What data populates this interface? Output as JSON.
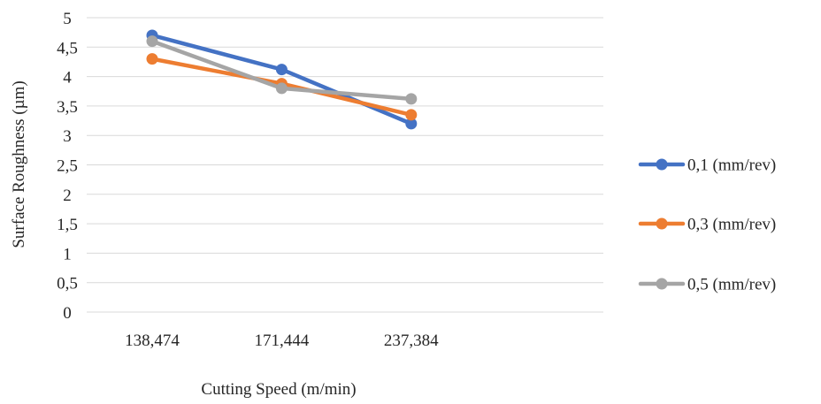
{
  "chart_data": {
    "type": "line",
    "categories": [
      "138,474",
      "171,444",
      "237,384"
    ],
    "series": [
      {
        "name": "0,1 (mm/rev)",
        "values": [
          4.7,
          4.12,
          3.2
        ],
        "color": "#4472C4"
      },
      {
        "name": "0,3 (mm/rev)",
        "values": [
          4.3,
          3.88,
          3.35
        ],
        "color": "#ED7D31"
      },
      {
        "name": "0,5 (mm/rev)",
        "values": [
          4.6,
          3.8,
          3.62
        ],
        "color": "#A5A5A5"
      }
    ],
    "xlabel": "Cutting Speed (m/min)",
    "ylabel": "Surface Roughness (µm)",
    "ylim": [
      0,
      5
    ],
    "yticks": [
      {
        "value": 0,
        "label": "0"
      },
      {
        "value": 0.5,
        "label": "0,5"
      },
      {
        "value": 1,
        "label": "1"
      },
      {
        "value": 1.5,
        "label": "1,5"
      },
      {
        "value": 2,
        "label": "2"
      },
      {
        "value": 2.5,
        "label": "2,5"
      },
      {
        "value": 3,
        "label": "3"
      },
      {
        "value": 3.5,
        "label": "3,5"
      },
      {
        "value": 4,
        "label": "4"
      },
      {
        "value": 4.5,
        "label": "4,5"
      },
      {
        "value": 5,
        "label": "5"
      }
    ],
    "grid": "horizontal",
    "legend_position": "right",
    "gridline_color": "#D9D9D9"
  }
}
